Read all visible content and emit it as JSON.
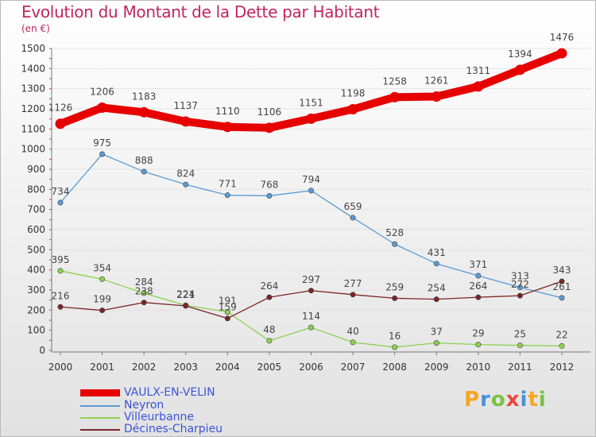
{
  "title": "Evolution du Montant de la Dette par Habitant",
  "subtitle": "(en €)",
  "chart_data": {
    "type": "line",
    "title": "Evolution du Montant de la Dette par Habitant",
    "ylabel": "(en €)",
    "ylim": [
      0,
      1500
    ],
    "yticks": [
      0,
      100,
      200,
      300,
      400,
      500,
      600,
      700,
      800,
      900,
      1000,
      1100,
      1200,
      1300,
      1400,
      1500
    ],
    "x": [
      "2000",
      "2001",
      "2002",
      "2003",
      "2004",
      "2005",
      "2006",
      "2007",
      "2008",
      "2009",
      "2010",
      "2011",
      "2012"
    ],
    "series": [
      {
        "name": "VAULX-EN-VELIN",
        "color": "#e60000",
        "values": [
          1126,
          1206,
          1183,
          1137,
          1110,
          1106,
          1151,
          1198,
          1258,
          1261,
          1311,
          1394,
          1476
        ]
      },
      {
        "name": "Neyron",
        "color": "#5b9bd5",
        "values": [
          734,
          975,
          888,
          824,
          771,
          768,
          794,
          659,
          528,
          431,
          371,
          313,
          261
        ]
      },
      {
        "name": "Villeurbanne",
        "color": "#8fd14f",
        "values": [
          395,
          354,
          284,
          224,
          191,
          48,
          114,
          40,
          16,
          37,
          29,
          25,
          22
        ]
      },
      {
        "name": "Décines-Charpieu",
        "color": "#7a2525",
        "values": [
          216,
          199,
          238,
          221,
          159,
          264,
          297,
          277,
          259,
          254,
          264,
          272,
          343
        ]
      }
    ],
    "legend": "bottom-left"
  },
  "logo": {
    "letters": [
      "P",
      "r",
      "o",
      "x",
      "i",
      "t",
      "i"
    ],
    "colors": [
      "#f5a623",
      "#4a90d9",
      "#7ac142",
      "#e8483f",
      "#4a90d9",
      "#f5a623",
      "#7ac142"
    ]
  }
}
